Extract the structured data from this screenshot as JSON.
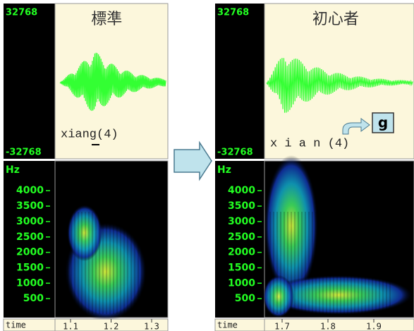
{
  "panels": [
    {
      "title": "標準",
      "amp_max": 32768,
      "amp_min": -32768,
      "transcription": "xiang(4)",
      "freq_unit": "Hz",
      "freq_ticks": [
        4000,
        3500,
        3000,
        2500,
        2000,
        1500,
        1000,
        500
      ],
      "time_label": "time",
      "time_ticks": [
        1.1,
        1.2,
        1.3
      ]
    },
    {
      "title": "初心者",
      "amp_max": 32768,
      "amp_min": -32768,
      "transcription": "x i a n (4)",
      "annotation": "g",
      "freq_unit": "Hz",
      "freq_ticks": [
        4000,
        3500,
        3000,
        2500,
        2000,
        1500,
        1000,
        500
      ],
      "time_label": "time",
      "time_ticks": [
        1.7,
        1.8,
        1.9
      ]
    }
  ]
}
